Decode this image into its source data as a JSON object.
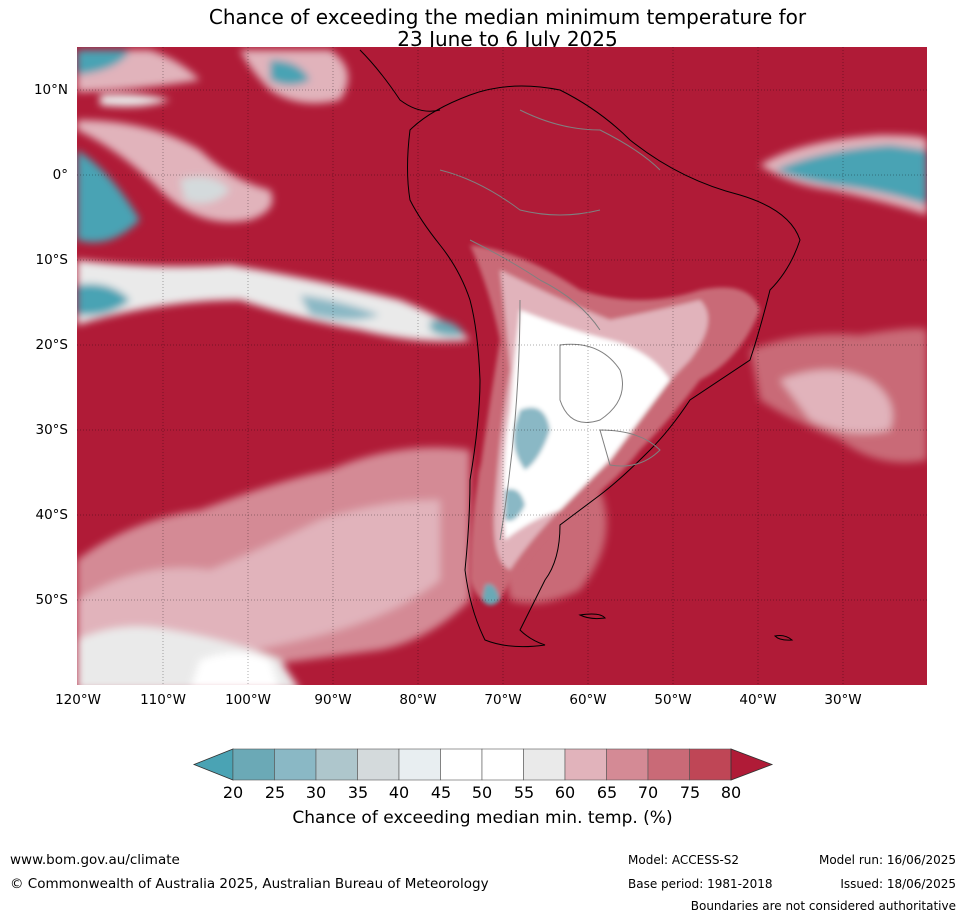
{
  "title": {
    "line1": "Chance of exceeding the median minimum temperature for",
    "line2": "23 June to 6 July 2025"
  },
  "map": {
    "region": "South America",
    "background_color": "#b01b37",
    "lat_labels": [
      "10°N",
      "0°",
      "10°S",
      "20°S",
      "30°S",
      "40°S",
      "50°S"
    ],
    "lon_labels": [
      "120°W",
      "110°W",
      "100°W",
      "90°W",
      "80°W",
      "70°W",
      "60°W",
      "50°W",
      "40°W",
      "30°W"
    ]
  },
  "colorbar": {
    "ticks": [
      "20",
      "25",
      "30",
      "35",
      "40",
      "45",
      "50",
      "55",
      "60",
      "65",
      "70",
      "75",
      "80"
    ],
    "colors": [
      "#4aa3b4",
      "#6ba9b6",
      "#8ab8c5",
      "#aec6cc",
      "#d4dadc",
      "#e8eef1",
      "#ffffff",
      "#ffffff",
      "#eaeaea",
      "#e1b3bb",
      "#d48a95",
      "#c96a77",
      "#bf4656",
      "#b01b37"
    ],
    "label": "Chance of exceeding median min. temp. (%)"
  },
  "footer": {
    "website": "www.bom.gov.au/climate",
    "copyright": "© Commonwealth of Australia 2025, Australian Bureau of Meteorology",
    "model": "Model: ACCESS-S2",
    "base_period": "Base period: 1981-2018",
    "model_run": "Model run: 16/06/2025",
    "issued": "Issued: 18/06/2025",
    "disclaimer": "Boundaries are not considered authoritative"
  }
}
